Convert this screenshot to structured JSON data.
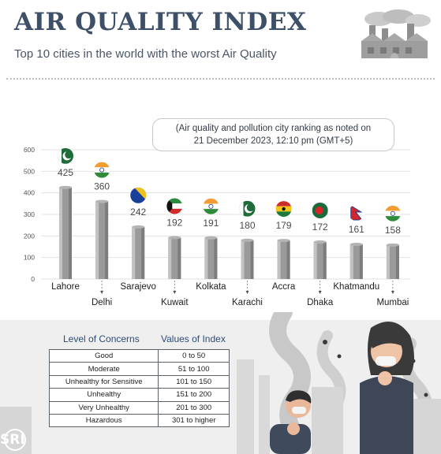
{
  "header": {
    "title": "AIR QUALITY INDEX",
    "subtitle": "Top 10 cities in the world with the worst Air Quality"
  },
  "note": {
    "line1": "(Air quality and pollution city ranking as noted on",
    "line2": "21 December 2023, 12:10 pm (GMT+5)"
  },
  "chart_data": {
    "type": "bar",
    "categories": [
      "Lahore",
      "Delhi",
      "Sarajevo",
      "Kuwait",
      "Kolkata",
      "Karachi",
      "Accra",
      "Dhaka",
      "Khatmandu",
      "Mumbai"
    ],
    "values": [
      425,
      360,
      242,
      192,
      191,
      180,
      179,
      172,
      161,
      158
    ],
    "value_labels": [
      "425",
      "360",
      "242",
      "192",
      "191",
      "180",
      "179",
      "172",
      "161",
      "158"
    ],
    "flags": [
      "pakistan-flag",
      "india-flag",
      "bosnia-flag",
      "kuwait-flag",
      "india-flag",
      "pakistan-flag",
      "ghana-flag",
      "bangladesh-flag",
      "nepal-flag",
      "india-flag"
    ],
    "yticks": [
      "600",
      "500",
      "400",
      "300",
      "200",
      "100",
      "0"
    ],
    "ylim": [
      0,
      600
    ],
    "bar_color": "#9a9a9a",
    "grid": true,
    "title": "",
    "xlabel": "",
    "ylabel": ""
  },
  "concerns": {
    "header_level": "Level of Concerns",
    "header_values": "Values of Index",
    "rows": [
      {
        "level": "Good",
        "range": "0 to 50"
      },
      {
        "level": "Moderate",
        "range": "51 to 100"
      },
      {
        "level": "Unhealthy for Sensitive",
        "range": "101 to 150"
      },
      {
        "level": "Unhealthy",
        "range": "151 to 200"
      },
      {
        "level": "Very Unhealthy",
        "range": "201 to 300"
      },
      {
        "level": "Hazardous",
        "range": "301 to higher"
      }
    ]
  },
  "logo": {
    "text": "SRI"
  },
  "colors": {
    "title": "#3d5068",
    "table_header": "#2e4b78",
    "grid": "#e2e2e2",
    "city_silhouette": "#d9d9d9"
  }
}
